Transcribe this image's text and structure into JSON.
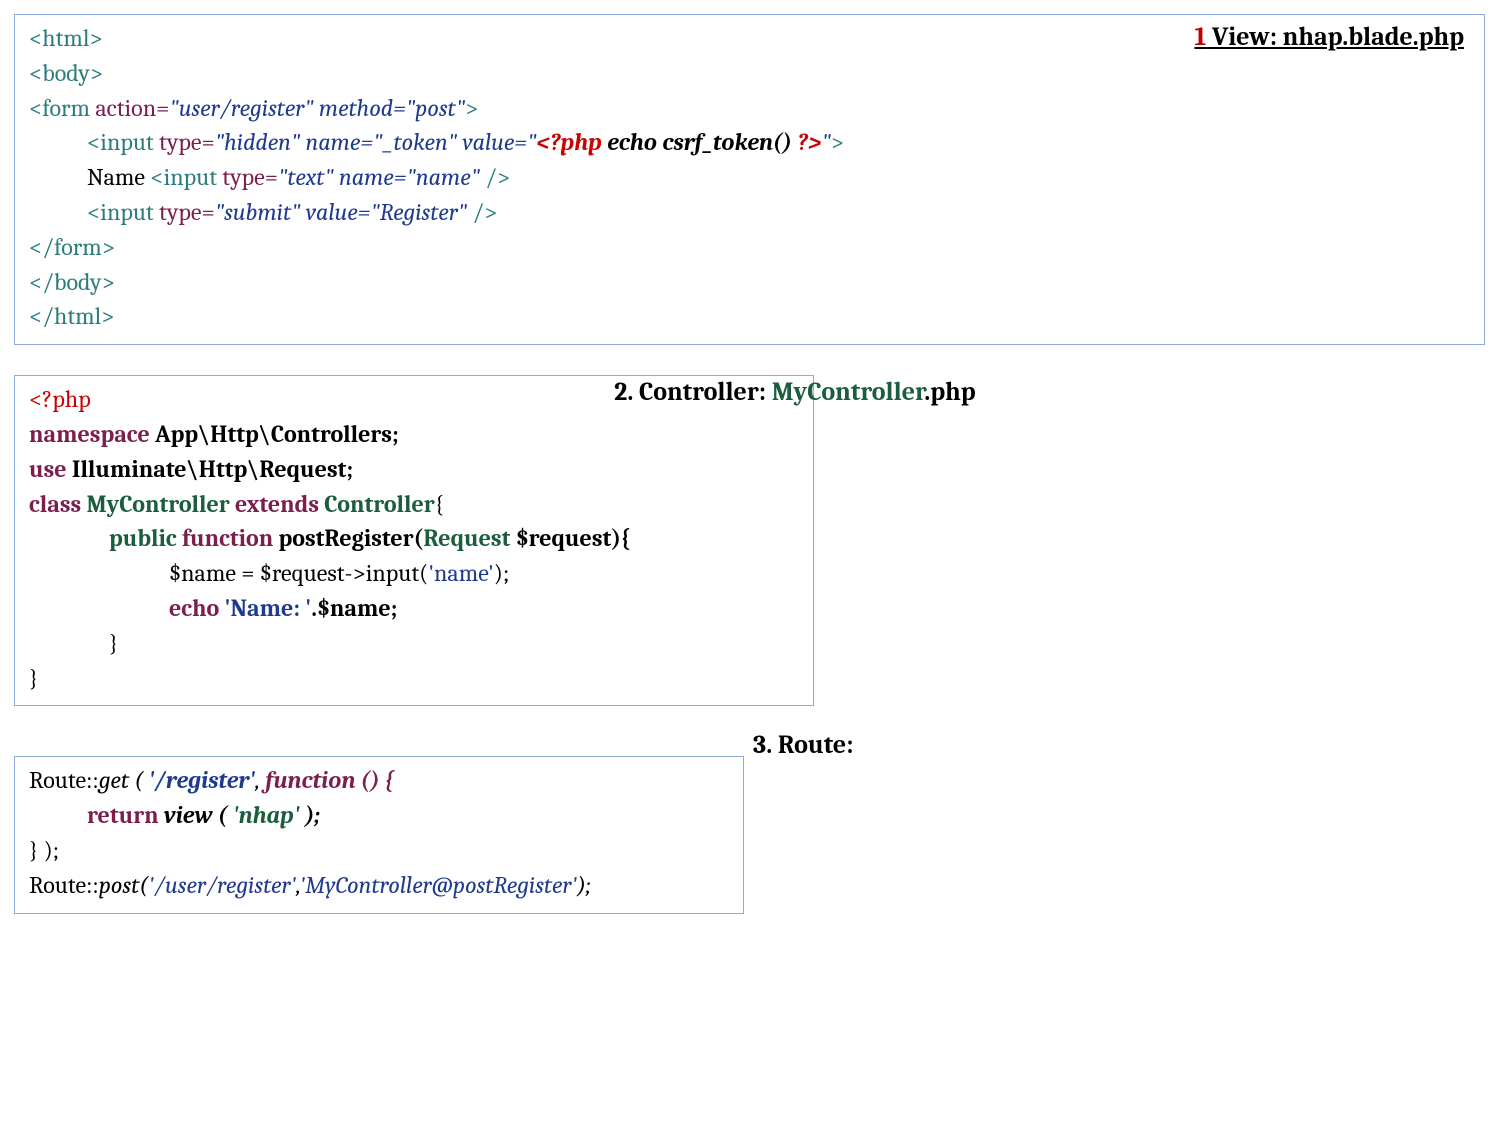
{
  "panels": {
    "view": {
      "title_num": "1",
      "title_text": " View: nhap.blade.php",
      "border_color": "#8faadc",
      "lines": {
        "l1": "<html>",
        "l2": "<body>",
        "l3_tag_open": "<form",
        "l3_attr1": " action=",
        "l3_val1": "\"user/register\"",
        "l3_attr2": " method=",
        "l3_val2": "\"post\"",
        "l3_close": ">",
        "l4_tag_open": "<input",
        "l4_attr1": " type=",
        "l4_val1": "\"hidden\"",
        "l4_attr2": " name=",
        "l4_val2": "\"_token\"",
        "l4_attr3": " value=",
        "l4_val3a": "\"",
        "l4_php_open": "<?php ",
        "l4_php_echo": "echo csrf_token() ",
        "l4_php_close": "?>",
        "l4_val3b": "\"",
        "l4_close": ">",
        "l5_name": "Name ",
        "l5_tag_open": "<input",
        "l5_attr1": " type=",
        "l5_val1": "\"text\"",
        "l5_attr2": " name=",
        "l5_val2": "\"name\"",
        "l5_close": " />",
        "l6_tag_open": "<input",
        "l6_attr1": " type=",
        "l6_val1": "\"submit\"",
        "l6_attr2": " value=",
        "l6_val2": "\"Register\"",
        "l6_close": " />",
        "l7": "</form>",
        "l8": "</body>",
        "l9": "</html>"
      }
    },
    "controller": {
      "title_num": "2. ",
      "title_label": "Controller: ",
      "title_class": "MyController",
      "title_ext": ".php",
      "lines": {
        "l1": "<?php",
        "l2_kw": "namespace",
        "l2_rest": " App\\Http\\Controllers;",
        "l3_kw": "use",
        "l3_rest": " Illuminate\\Http\\Request;",
        "l4_kw1": "class ",
        "l4_cls": "MyController ",
        "l4_kw2": "extends ",
        "l4_base": "Controller",
        "l4_brace": "{",
        "l5_vis": "public ",
        "l5_fn": "function ",
        "l5_name": "postRegister(",
        "l5_type": "Request ",
        "l5_param": "$request){",
        "l6": "$name = $request->input(",
        "l6_str": "'name'",
        "l6_end": ");",
        "l7_kw": "echo ",
        "l7_str": "'Name: '",
        "l7_end": ".$name;",
        "l8": "}",
        "l9": "}"
      }
    },
    "route": {
      "title": "3. Route:",
      "lines": {
        "l1_a": "Route::",
        "l1_b": "get ( ",
        "l1_c": "'/register'",
        "l1_d": ", ",
        "l1_e": "function () {",
        "l2_a": "return ",
        "l2_b": "view ( ",
        "l2_c": "'nhap' ",
        "l2_d": ");",
        "l3": "} );",
        "l4_a": "Route::",
        "l4_b": "post(",
        "l4_c": "'/user/register'",
        "l4_comma": ",",
        "l4_d": "'MyController@postRegister'",
        "l4_e": ");"
      }
    }
  },
  "colors": {
    "tag": "#2e7d7d",
    "attrname": "#7b1f4f",
    "attrval": "#1f3b8f",
    "php": "#cc0000",
    "red": "#c00000",
    "green": "#1b5e3e",
    "border": "#8faadc"
  },
  "fontsize": 24,
  "title_fontsize": 26
}
